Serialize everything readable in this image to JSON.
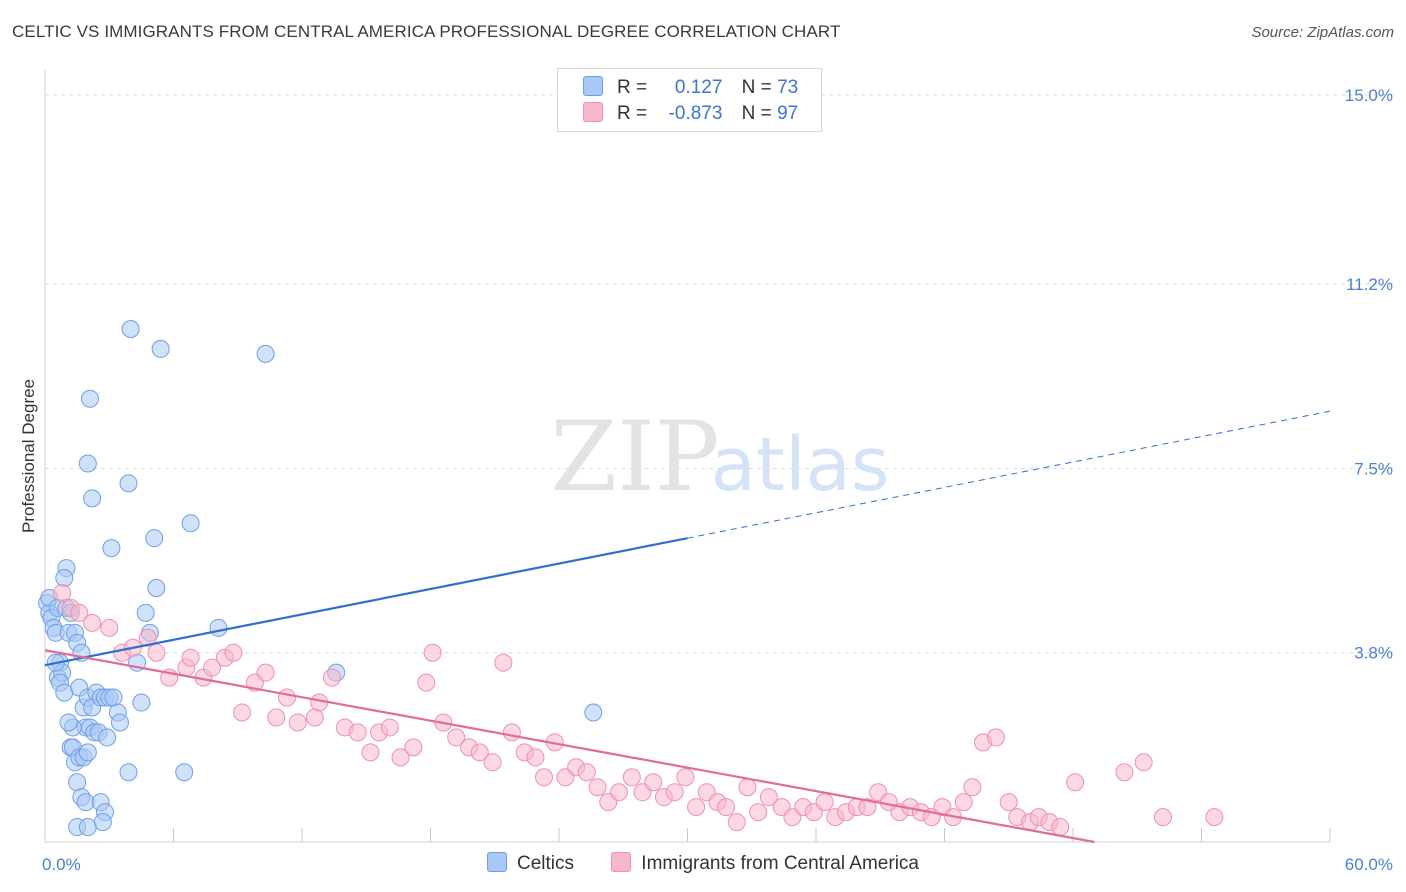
{
  "title": "CELTIC VS IMMIGRANTS FROM CENTRAL AMERICA PROFESSIONAL DEGREE CORRELATION CHART",
  "source": "Source: ZipAtlas.com",
  "watermark": {
    "zip": "ZIP",
    "atlas": "atlas"
  },
  "legend": {
    "rows": [
      {
        "r_label": "R =",
        "r_value": "0.127",
        "n_label": "N =",
        "n_value": "73",
        "color": "#a9c8f5"
      },
      {
        "r_label": "R =",
        "r_value": "-0.873",
        "n_label": "N =",
        "n_value": "97",
        "color": "#f7b8cb"
      }
    ]
  },
  "bottom_legend": [
    {
      "label": "Celtics",
      "color": "#a9c8f5"
    },
    {
      "label": "Immigrants from Central America",
      "color": "#f7b8cb"
    }
  ],
  "chart_data": {
    "type": "scatter",
    "ylabel": "Professional Degree",
    "xlim": [
      0,
      60
    ],
    "ylim": [
      0,
      15.5
    ],
    "x_tick_labels": [
      {
        "value": 0,
        "label": "0.0%"
      },
      {
        "value": 60,
        "label": "60.0%"
      }
    ],
    "y_tick_labels": [
      {
        "value": 15.0,
        "label": "15.0%"
      },
      {
        "value": 11.2,
        "label": "11.2%"
      },
      {
        "value": 7.5,
        "label": "7.5%"
      },
      {
        "value": 3.8,
        "label": "3.8%"
      }
    ],
    "x_minor_ticks": [
      0,
      6,
      12,
      18,
      24,
      30,
      36,
      42,
      48,
      54,
      60
    ],
    "grid": "horizontal dashed",
    "series": [
      {
        "name": "Celtics",
        "color": "#6fa0e6",
        "fill": "#a9c8f5",
        "trend": {
          "x0": 0,
          "y0": 3.55,
          "x1": 30,
          "y1": 6.1,
          "dash_to_x": 60,
          "dash_to_y": 8.65,
          "color": "#2f6fd1"
        },
        "points": [
          [
            0.1,
            4.8
          ],
          [
            0.2,
            4.6
          ],
          [
            0.3,
            4.5
          ],
          [
            0.2,
            4.9
          ],
          [
            0.4,
            4.3
          ],
          [
            0.6,
            4.7
          ],
          [
            0.5,
            4.2
          ],
          [
            0.7,
            3.6
          ],
          [
            0.6,
            3.3
          ],
          [
            0.8,
            3.4
          ],
          [
            0.7,
            3.2
          ],
          [
            0.9,
            3.0
          ],
          [
            1.0,
            5.5
          ],
          [
            0.9,
            5.3
          ],
          [
            1.1,
            4.2
          ],
          [
            1.0,
            4.7
          ],
          [
            1.2,
            4.6
          ],
          [
            1.4,
            4.2
          ],
          [
            1.5,
            4.0
          ],
          [
            1.7,
            3.8
          ],
          [
            1.6,
            3.1
          ],
          [
            1.8,
            2.7
          ],
          [
            2.0,
            2.9
          ],
          [
            2.2,
            2.7
          ],
          [
            2.4,
            3.0
          ],
          [
            2.6,
            2.9
          ],
          [
            2.8,
            2.9
          ],
          [
            3.0,
            2.9
          ],
          [
            3.2,
            2.9
          ],
          [
            3.4,
            2.6
          ],
          [
            1.9,
            2.3
          ],
          [
            2.1,
            2.3
          ],
          [
            2.3,
            2.2
          ],
          [
            2.5,
            2.2
          ],
          [
            1.3,
            2.3
          ],
          [
            1.1,
            2.4
          ],
          [
            1.2,
            1.9
          ],
          [
            1.3,
            1.9
          ],
          [
            1.4,
            1.6
          ],
          [
            1.6,
            1.7
          ],
          [
            1.8,
            1.7
          ],
          [
            2.0,
            1.8
          ],
          [
            1.5,
            1.2
          ],
          [
            1.7,
            0.9
          ],
          [
            1.9,
            0.8
          ],
          [
            2.6,
            0.8
          ],
          [
            2.8,
            0.6
          ],
          [
            1.5,
            0.3
          ],
          [
            2.0,
            0.3
          ],
          [
            2.7,
            0.4
          ],
          [
            4.0,
            10.3
          ],
          [
            5.4,
            9.9
          ],
          [
            10.3,
            9.8
          ],
          [
            2.1,
            8.9
          ],
          [
            2.0,
            7.6
          ],
          [
            2.2,
            6.9
          ],
          [
            3.9,
            7.2
          ],
          [
            6.8,
            6.4
          ],
          [
            3.1,
            5.9
          ],
          [
            5.1,
            6.1
          ],
          [
            5.2,
            5.1
          ],
          [
            4.7,
            4.6
          ],
          [
            4.9,
            4.2
          ],
          [
            4.3,
            3.6
          ],
          [
            8.1,
            4.3
          ],
          [
            13.6,
            3.4
          ],
          [
            25.6,
            2.6
          ],
          [
            4.5,
            2.8
          ],
          [
            3.9,
            1.4
          ],
          [
            6.5,
            1.4
          ],
          [
            3.5,
            2.4
          ],
          [
            2.9,
            2.1
          ],
          [
            0.5,
            3.6
          ]
        ]
      },
      {
        "name": "Immigrants from Central America",
        "color": "#f08fb0",
        "fill": "#f7b8cb",
        "trend": {
          "x0": 0,
          "y0": 3.85,
          "x1": 49,
          "y1": 0.0,
          "color": "#e46b97"
        },
        "points": [
          [
            0.8,
            5.0
          ],
          [
            1.2,
            4.7
          ],
          [
            1.6,
            4.6
          ],
          [
            2.2,
            4.4
          ],
          [
            3.0,
            4.3
          ],
          [
            3.6,
            3.8
          ],
          [
            4.1,
            3.9
          ],
          [
            4.8,
            4.1
          ],
          [
            5.2,
            3.8
          ],
          [
            5.8,
            3.3
          ],
          [
            6.6,
            3.5
          ],
          [
            6.8,
            3.7
          ],
          [
            7.4,
            3.3
          ],
          [
            7.8,
            3.5
          ],
          [
            8.4,
            3.7
          ],
          [
            8.8,
            3.8
          ],
          [
            9.2,
            2.6
          ],
          [
            9.8,
            3.2
          ],
          [
            10.3,
            3.4
          ],
          [
            10.8,
            2.5
          ],
          [
            11.3,
            2.9
          ],
          [
            11.8,
            2.4
          ],
          [
            12.6,
            2.5
          ],
          [
            12.8,
            2.8
          ],
          [
            13.4,
            3.3
          ],
          [
            14.0,
            2.3
          ],
          [
            14.6,
            2.2
          ],
          [
            15.2,
            1.8
          ],
          [
            15.6,
            2.2
          ],
          [
            16.1,
            2.3
          ],
          [
            16.6,
            1.7
          ],
          [
            17.2,
            1.9
          ],
          [
            17.8,
            3.2
          ],
          [
            18.1,
            3.8
          ],
          [
            18.6,
            2.4
          ],
          [
            19.2,
            2.1
          ],
          [
            19.8,
            1.9
          ],
          [
            20.3,
            1.8
          ],
          [
            20.9,
            1.6
          ],
          [
            21.4,
            3.6
          ],
          [
            21.8,
            2.2
          ],
          [
            22.4,
            1.8
          ],
          [
            22.9,
            1.7
          ],
          [
            23.3,
            1.3
          ],
          [
            23.8,
            2.0
          ],
          [
            24.3,
            1.3
          ],
          [
            24.8,
            1.5
          ],
          [
            25.3,
            1.4
          ],
          [
            25.8,
            1.1
          ],
          [
            26.3,
            0.8
          ],
          [
            26.8,
            1.0
          ],
          [
            27.4,
            1.3
          ],
          [
            27.9,
            1.0
          ],
          [
            28.4,
            1.2
          ],
          [
            28.9,
            0.9
          ],
          [
            29.4,
            1.0
          ],
          [
            29.9,
            1.3
          ],
          [
            30.4,
            0.7
          ],
          [
            30.9,
            1.0
          ],
          [
            31.4,
            0.8
          ],
          [
            31.8,
            0.7
          ],
          [
            32.3,
            0.4
          ],
          [
            32.8,
            1.1
          ],
          [
            33.3,
            0.6
          ],
          [
            33.8,
            0.9
          ],
          [
            34.4,
            0.7
          ],
          [
            34.9,
            0.5
          ],
          [
            35.4,
            0.7
          ],
          [
            35.9,
            0.6
          ],
          [
            36.4,
            0.8
          ],
          [
            36.9,
            0.5
          ],
          [
            37.4,
            0.6
          ],
          [
            37.9,
            0.7
          ],
          [
            38.4,
            0.7
          ],
          [
            38.9,
            1.0
          ],
          [
            39.4,
            0.8
          ],
          [
            39.9,
            0.6
          ],
          [
            40.4,
            0.7
          ],
          [
            40.9,
            0.6
          ],
          [
            41.4,
            0.5
          ],
          [
            41.9,
            0.7
          ],
          [
            42.4,
            0.5
          ],
          [
            42.9,
            0.8
          ],
          [
            43.3,
            1.1
          ],
          [
            43.8,
            2.0
          ],
          [
            44.4,
            2.1
          ],
          [
            45.0,
            0.8
          ],
          [
            45.4,
            0.5
          ],
          [
            46.0,
            0.4
          ],
          [
            46.4,
            0.5
          ],
          [
            46.9,
            0.4
          ],
          [
            47.4,
            0.3
          ],
          [
            48.1,
            1.2
          ],
          [
            50.4,
            1.4
          ],
          [
            51.3,
            1.6
          ],
          [
            52.2,
            0.5
          ],
          [
            54.6,
            0.5
          ]
        ]
      }
    ]
  }
}
